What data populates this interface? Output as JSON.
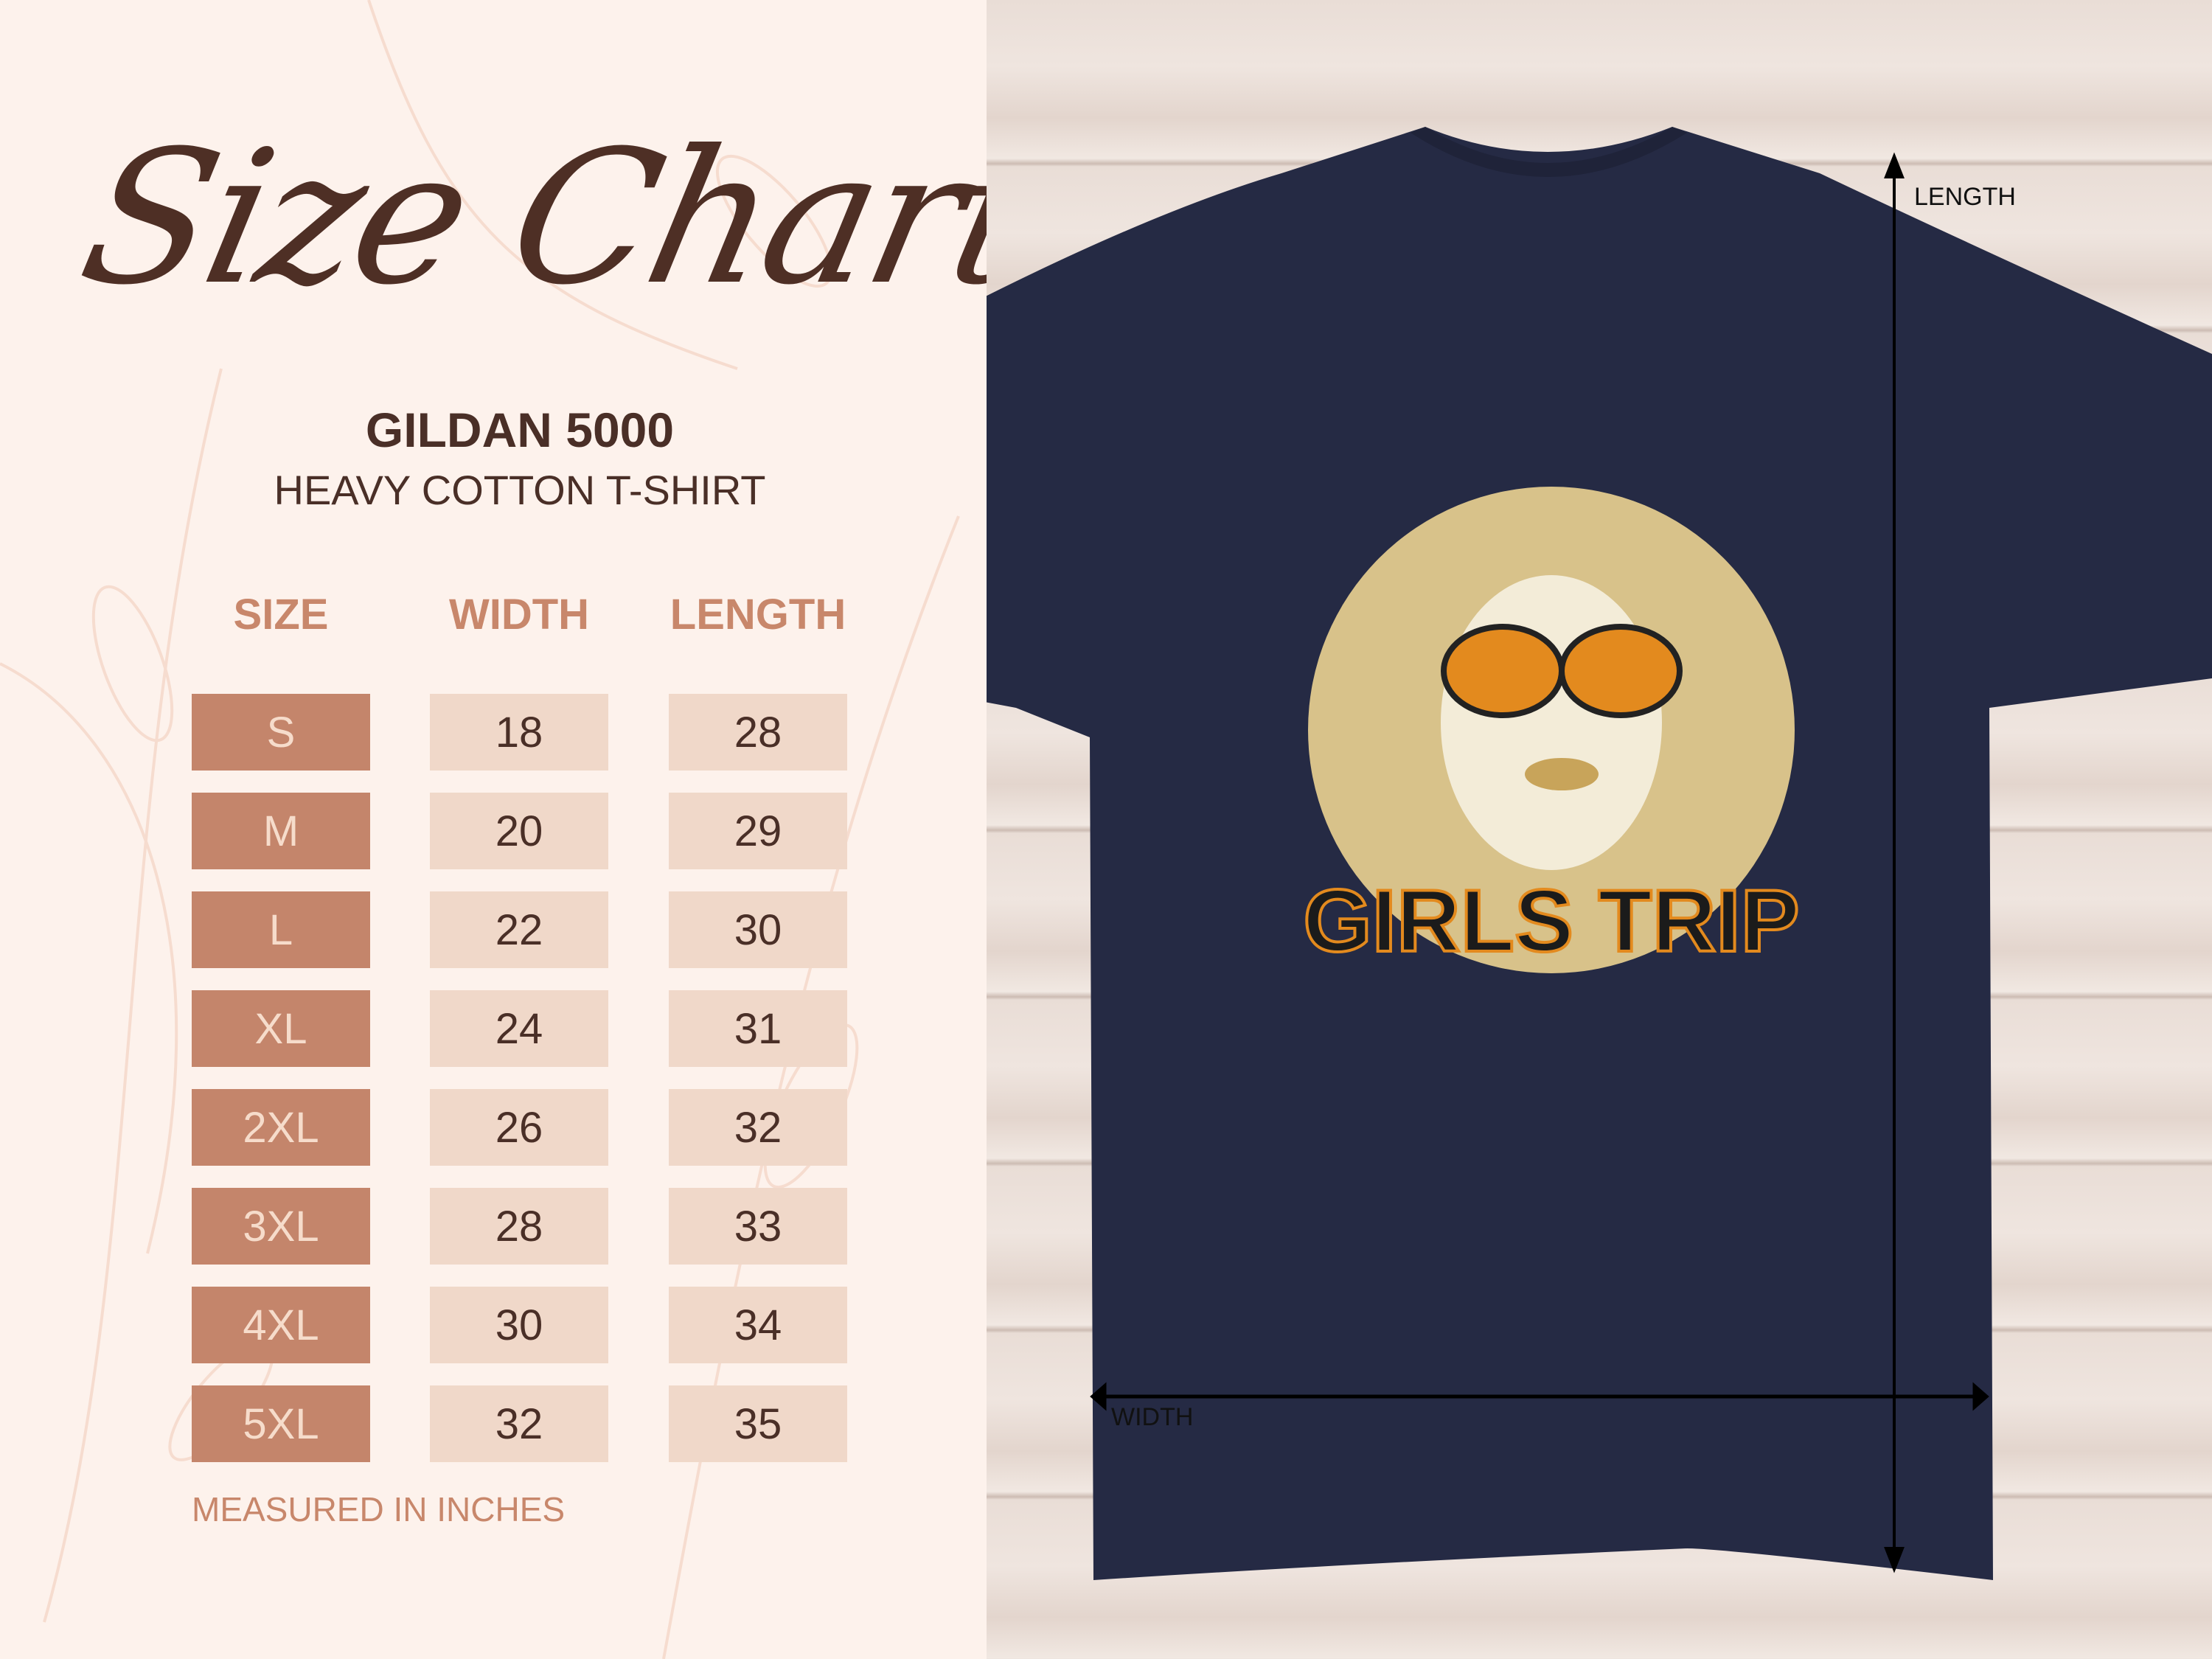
{
  "title": "Size Chart",
  "product": {
    "brand": "GILDAN 5000",
    "name": "HEAVY COTTON T-SHIRT"
  },
  "table": {
    "headers": [
      "SIZE",
      "WIDTH",
      "LENGTH"
    ],
    "rows": [
      {
        "size": "S",
        "width": "18",
        "length": "28"
      },
      {
        "size": "M",
        "width": "20",
        "length": "29"
      },
      {
        "size": "L",
        "width": "22",
        "length": "30"
      },
      {
        "size": "XL",
        "width": "24",
        "length": "31"
      },
      {
        "size": "2XL",
        "width": "26",
        "length": "32"
      },
      {
        "size": "3XL",
        "width": "28",
        "length": "33"
      },
      {
        "size": "4XL",
        "width": "30",
        "length": "34"
      },
      {
        "size": "5XL",
        "width": "32",
        "length": "35"
      }
    ]
  },
  "note": "MEASURED IN INCHES",
  "shirt": {
    "color": "#252a44",
    "print_text": "GIRLS TRIP",
    "length_label": "LENGTH",
    "width_label": "WIDTH"
  },
  "colors": {
    "accent": "#c4856b",
    "cell": "#f0d8c9",
    "text": "#4a2f27",
    "background": "#fdf2ec"
  }
}
